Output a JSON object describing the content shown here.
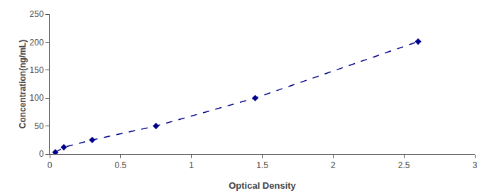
{
  "chart_data": {
    "type": "line",
    "x": [
      0.04,
      0.1,
      0.3,
      0.75,
      1.45,
      2.6
    ],
    "values": [
      3,
      12,
      25,
      50,
      100,
      201
    ],
    "color": "#00008B",
    "marker": "diamond",
    "line_style": "dashed",
    "xlabel": "Optical Density",
    "ylabel": "Concentration(ng/mL)",
    "xlim": [
      0,
      3
    ],
    "ylim": [
      0,
      250
    ],
    "xticks": [
      0,
      0.5,
      1,
      1.5,
      2,
      2.5,
      3
    ],
    "yticks": [
      0,
      50,
      100,
      150,
      200,
      250
    ],
    "grid": false
  }
}
